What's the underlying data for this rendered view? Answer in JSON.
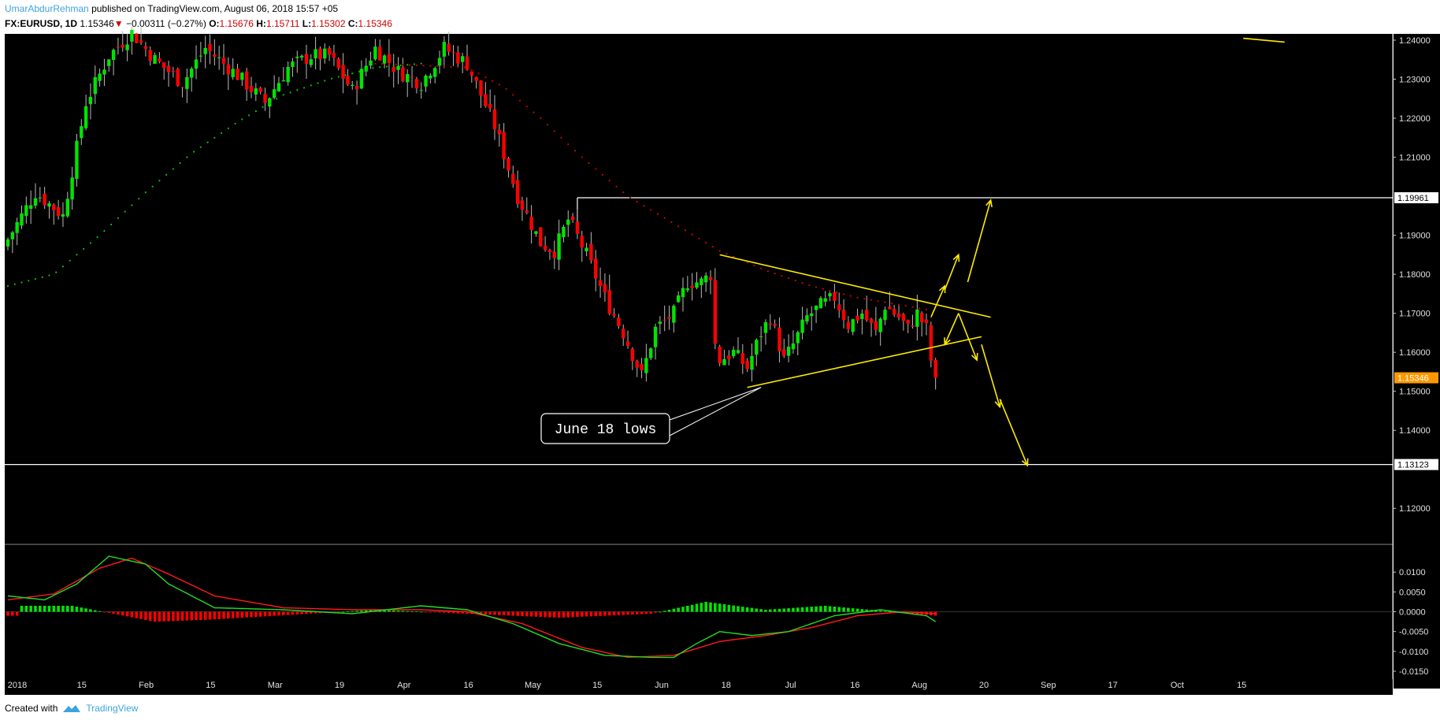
{
  "header": {
    "author": "UmarAbdurRehman",
    "published": "published on TradingView.com, August 06, 2018 15:57 +05",
    "symbol": "FX:EURUSD, 1D",
    "last": "1.15346",
    "change": "−0.00311 (−0.27%)",
    "o_label": "O:",
    "o_val": "1.15676",
    "h_label": "H:",
    "h_val": "1.15711",
    "l_label": "L:",
    "l_val": "1.15302",
    "c_label": "C:",
    "c_val": "1.15346"
  },
  "footer": {
    "created": "Created with",
    "brand": "TradingView"
  },
  "colors": {
    "up": "#00e400",
    "down": "#ff0000",
    "ma": "#d40000",
    "sar": "#00c800",
    "drawing": "#ffeb00",
    "bg": "#000000",
    "price_tag": "#ff9800"
  },
  "chart_data": [
    {
      "type": "candlestick",
      "symbol": "FX:EURUSD",
      "interval": "1D",
      "x_ticks": [
        "2018",
        "15",
        "Feb",
        "15",
        "Mar",
        "19",
        "Apr",
        "16",
        "May",
        "15",
        "Jun",
        "18",
        "Jul",
        "16",
        "Aug",
        "20",
        "Sep",
        "17",
        "Oct",
        "15"
      ],
      "y_ticks": [
        "1.24000",
        "1.23000",
        "1.22000",
        "1.21000",
        "1.19000",
        "1.18000",
        "1.17000",
        "1.16000",
        "1.15000",
        "1.14000",
        "1.12000"
      ],
      "ylim": [
        1.11,
        1.24
      ],
      "levels": [
        {
          "label": "1.19961",
          "value": 1.19961
        },
        {
          "label": "1.13123",
          "value": 1.13123
        }
      ],
      "last_price_label": "1.15346",
      "annotation": "June 18 lows",
      "close_path": [
        {
          "t": 0,
          "v": 1.189
        },
        {
          "t": 6,
          "v": 1.201
        },
        {
          "t": 12,
          "v": 1.195
        },
        {
          "t": 17,
          "v": 1.224
        },
        {
          "t": 22,
          "v": 1.236
        },
        {
          "t": 27,
          "v": 1.242
        },
        {
          "t": 32,
          "v": 1.235
        },
        {
          "t": 38,
          "v": 1.229
        },
        {
          "t": 43,
          "v": 1.238
        },
        {
          "t": 50,
          "v": 1.231
        },
        {
          "t": 56,
          "v": 1.224
        },
        {
          "t": 61,
          "v": 1.233
        },
        {
          "t": 66,
          "v": 1.236
        },
        {
          "t": 70,
          "v": 1.236
        },
        {
          "t": 75,
          "v": 1.227
        },
        {
          "t": 80,
          "v": 1.238
        },
        {
          "t": 85,
          "v": 1.232
        },
        {
          "t": 90,
          "v": 1.229
        },
        {
          "t": 95,
          "v": 1.238
        },
        {
          "t": 100,
          "v": 1.234
        },
        {
          "t": 106,
          "v": 1.218
        },
        {
          "t": 111,
          "v": 1.2
        },
        {
          "t": 116,
          "v": 1.188
        },
        {
          "t": 119,
          "v": 1.186
        },
        {
          "t": 122,
          "v": 1.194
        },
        {
          "t": 123,
          "v": 1.192
        },
        {
          "t": 126,
          "v": 1.185
        },
        {
          "t": 130,
          "v": 1.174
        },
        {
          "t": 134,
          "v": 1.165
        },
        {
          "t": 138,
          "v": 1.154
        },
        {
          "t": 141,
          "v": 1.166
        },
        {
          "t": 145,
          "v": 1.17
        },
        {
          "t": 148,
          "v": 1.178
        },
        {
          "t": 151,
          "v": 1.178
        },
        {
          "t": 153,
          "v": 1.18
        },
        {
          "t": 154,
          "v": 1.162
        },
        {
          "t": 155,
          "v": 1.158
        },
        {
          "t": 158,
          "v": 1.16
        },
        {
          "t": 161,
          "v": 1.156
        },
        {
          "t": 164,
          "v": 1.165
        },
        {
          "t": 166,
          "v": 1.169
        },
        {
          "t": 169,
          "v": 1.158
        },
        {
          "t": 171,
          "v": 1.162
        },
        {
          "t": 174,
          "v": 1.169
        },
        {
          "t": 177,
          "v": 1.172
        },
        {
          "t": 180,
          "v": 1.174
        },
        {
          "t": 183,
          "v": 1.167
        },
        {
          "t": 186,
          "v": 1.17
        },
        {
          "t": 189,
          "v": 1.165
        },
        {
          "t": 191,
          "v": 1.172
        },
        {
          "t": 194,
          "v": 1.169
        },
        {
          "t": 196,
          "v": 1.166
        },
        {
          "t": 198,
          "v": 1.17
        },
        {
          "t": 200,
          "v": 1.166
        },
        {
          "t": 201,
          "v": 1.158
        },
        {
          "t": 202,
          "v": 1.1534
        }
      ],
      "ma_series": [
        {
          "t": 80,
          "v": 1.234
        },
        {
          "t": 100,
          "v": 1.233
        },
        {
          "t": 108,
          "v": 1.228
        },
        {
          "t": 116,
          "v": 1.22
        },
        {
          "t": 125,
          "v": 1.21
        },
        {
          "t": 135,
          "v": 1.2
        },
        {
          "t": 145,
          "v": 1.193
        },
        {
          "t": 155,
          "v": 1.186
        },
        {
          "t": 165,
          "v": 1.181
        },
        {
          "t": 175,
          "v": 1.177
        },
        {
          "t": 185,
          "v": 1.174
        },
        {
          "t": 195,
          "v": 1.172
        },
        {
          "t": 202,
          "v": 1.1705
        }
      ],
      "green_dots_series": [
        {
          "t": 0,
          "v": 1.177
        },
        {
          "t": 10,
          "v": 1.18
        },
        {
          "t": 20,
          "v": 1.19
        },
        {
          "t": 30,
          "v": 1.201
        },
        {
          "t": 40,
          "v": 1.211
        },
        {
          "t": 50,
          "v": 1.219
        },
        {
          "t": 60,
          "v": 1.226
        },
        {
          "t": 70,
          "v": 1.23
        },
        {
          "t": 80,
          "v": 1.233
        },
        {
          "t": 90,
          "v": 1.234
        }
      ],
      "drawings": [
        {
          "kind": "line",
          "from": {
            "t": 155,
            "v": 1.185
          },
          "to": {
            "t": 214,
            "v": 1.169
          }
        },
        {
          "kind": "line",
          "from": {
            "t": 161,
            "v": 1.151
          },
          "to": {
            "t": 212,
            "v": 1.164
          }
        },
        {
          "kind": "line",
          "from": {
            "t": 269,
            "v": 1.2405
          },
          "to": {
            "t": 278,
            "v": 1.2395
          }
        },
        {
          "kind": "arrow",
          "from": {
            "t": 201,
            "v": 1.169
          },
          "to": {
            "t": 204,
            "v": 1.177
          }
        },
        {
          "kind": "arrow",
          "from": {
            "t": 204,
            "v": 1.176
          },
          "to": {
            "t": 207,
            "v": 1.185
          }
        },
        {
          "kind": "arrow",
          "from": {
            "t": 209,
            "v": 1.178
          },
          "to": {
            "t": 214,
            "v": 1.199
          }
        },
        {
          "kind": "arrow",
          "from": {
            "t": 207,
            "v": 1.17
          },
          "to": {
            "t": 204,
            "v": 1.162
          }
        },
        {
          "kind": "arrow",
          "from": {
            "t": 207,
            "v": 1.17
          },
          "to": {
            "t": 211,
            "v": 1.158
          }
        },
        {
          "kind": "arrow",
          "from": {
            "t": 212,
            "v": 1.162
          },
          "to": {
            "t": 216,
            "v": 1.146
          }
        },
        {
          "kind": "arrow",
          "from": {
            "t": 216,
            "v": 1.148
          },
          "to": {
            "t": 222,
            "v": 1.131
          }
        }
      ]
    },
    {
      "type": "line",
      "name_hidden": true,
      "y_ticks": [
        "0.0100",
        "0.0050",
        "0.0000",
        "-0.0050",
        "-0.0100",
        "-0.0150"
      ],
      "ylim": [
        -0.015,
        0.015
      ],
      "series_points": {
        "macd": [
          {
            "t": 0,
            "v": 0.004
          },
          {
            "t": 8,
            "v": 0.003
          },
          {
            "t": 15,
            "v": 0.007
          },
          {
            "t": 22,
            "v": 0.014
          },
          {
            "t": 30,
            "v": 0.012
          },
          {
            "t": 35,
            "v": 0.007
          },
          {
            "t": 45,
            "v": 0.001
          },
          {
            "t": 60,
            "v": 0.0005
          },
          {
            "t": 75,
            "v": -0.0005
          },
          {
            "t": 90,
            "v": 0.0015
          },
          {
            "t": 100,
            "v": 0.0005
          },
          {
            "t": 110,
            "v": -0.003
          },
          {
            "t": 120,
            "v": -0.008
          },
          {
            "t": 130,
            "v": -0.011
          },
          {
            "t": 140,
            "v": -0.0115
          },
          {
            "t": 145,
            "v": -0.0115
          },
          {
            "t": 150,
            "v": -0.008
          },
          {
            "t": 155,
            "v": -0.005
          },
          {
            "t": 162,
            "v": -0.006
          },
          {
            "t": 170,
            "v": -0.005
          },
          {
            "t": 180,
            "v": -0.001
          },
          {
            "t": 190,
            "v": 0.0005
          },
          {
            "t": 200,
            "v": -0.001
          },
          {
            "t": 202,
            "v": -0.0025
          }
        ],
        "signal": [
          {
            "t": 0,
            "v": 0.003
          },
          {
            "t": 10,
            "v": 0.0045
          },
          {
            "t": 20,
            "v": 0.011
          },
          {
            "t": 27,
            "v": 0.0135
          },
          {
            "t": 35,
            "v": 0.0095
          },
          {
            "t": 45,
            "v": 0.004
          },
          {
            "t": 60,
            "v": 0.001
          },
          {
            "t": 75,
            "v": 0.0005
          },
          {
            "t": 90,
            "v": 0.0005
          },
          {
            "t": 100,
            "v": 0.0
          },
          {
            "t": 112,
            "v": -0.003
          },
          {
            "t": 125,
            "v": -0.009
          },
          {
            "t": 135,
            "v": -0.0115
          },
          {
            "t": 145,
            "v": -0.011
          },
          {
            "t": 155,
            "v": -0.0075
          },
          {
            "t": 165,
            "v": -0.006
          },
          {
            "t": 175,
            "v": -0.004
          },
          {
            "t": 185,
            "v": -0.001
          },
          {
            "t": 195,
            "v": 0.0
          },
          {
            "t": 202,
            "v": -0.0005
          }
        ]
      },
      "hist_peaks": [
        {
          "t": 3,
          "v": 0.0015
        },
        {
          "t": 14,
          "v": 0.0015
        },
        {
          "t": 32,
          "v": -0.0025
        },
        {
          "t": 44,
          "v": -0.002
        },
        {
          "t": 80,
          "v": 0.0005
        },
        {
          "t": 120,
          "v": -0.0015
        },
        {
          "t": 140,
          "v": -0.0005
        },
        {
          "t": 152,
          "v": 0.0025
        },
        {
          "t": 165,
          "v": 0.0005
        },
        {
          "t": 178,
          "v": 0.0015
        },
        {
          "t": 202,
          "v": -0.001
        }
      ]
    }
  ]
}
